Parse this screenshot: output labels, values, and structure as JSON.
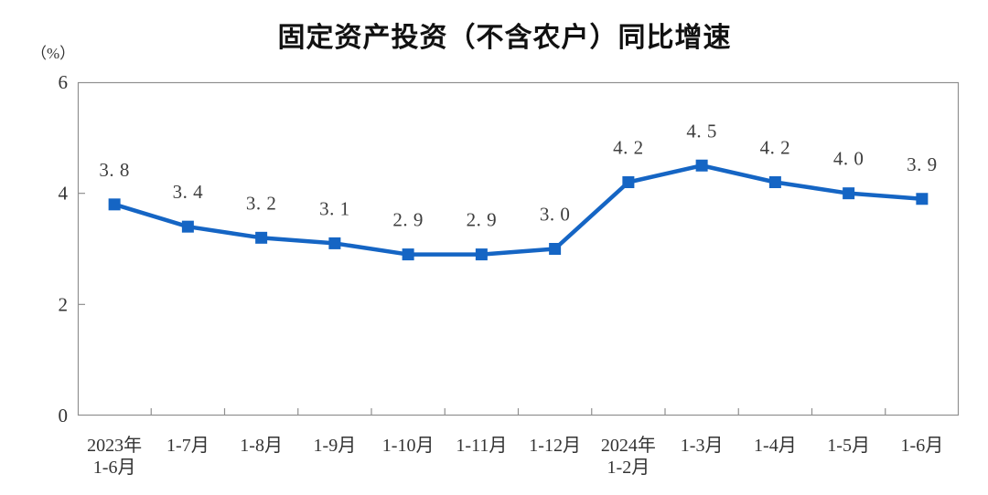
{
  "page": {
    "background": "#ffffff"
  },
  "chart_data": {
    "type": "line",
    "title": "固定资产投资（不含农户）同比增速",
    "unit_label": "（%）",
    "categories": [
      [
        "2023年",
        "1-6月"
      ],
      [
        "1-7月"
      ],
      [
        "1-8月"
      ],
      [
        "1-9月"
      ],
      [
        "1-10月"
      ],
      [
        "1-11月"
      ],
      [
        "1-12月"
      ],
      [
        "2024年",
        "1-2月"
      ],
      [
        "1-3月"
      ],
      [
        "1-4月"
      ],
      [
        "1-5月"
      ],
      [
        "1-6月"
      ]
    ],
    "values": [
      3.8,
      3.4,
      3.2,
      3.1,
      2.9,
      2.9,
      3.0,
      4.2,
      4.5,
      4.2,
      4.0,
      3.9
    ],
    "display_labels": [
      "3. 8",
      "3. 4",
      "3. 2",
      "3. 1",
      "2. 9",
      "2. 9",
      "3. 0",
      "4. 2",
      "4. 5",
      "4. 2",
      "4. 0",
      "3. 9"
    ],
    "ylim": [
      0,
      6
    ],
    "yticks": [
      0,
      2,
      4,
      6
    ],
    "xlabel": "",
    "ylabel": "（%）",
    "grid": false,
    "legend": "none",
    "marker": "square",
    "colors": {
      "series": "#1565c4",
      "axis_text": "#333333",
      "data_label_text": "#3d3d3d",
      "border": "#909090",
      "title_text": "#111111"
    }
  }
}
